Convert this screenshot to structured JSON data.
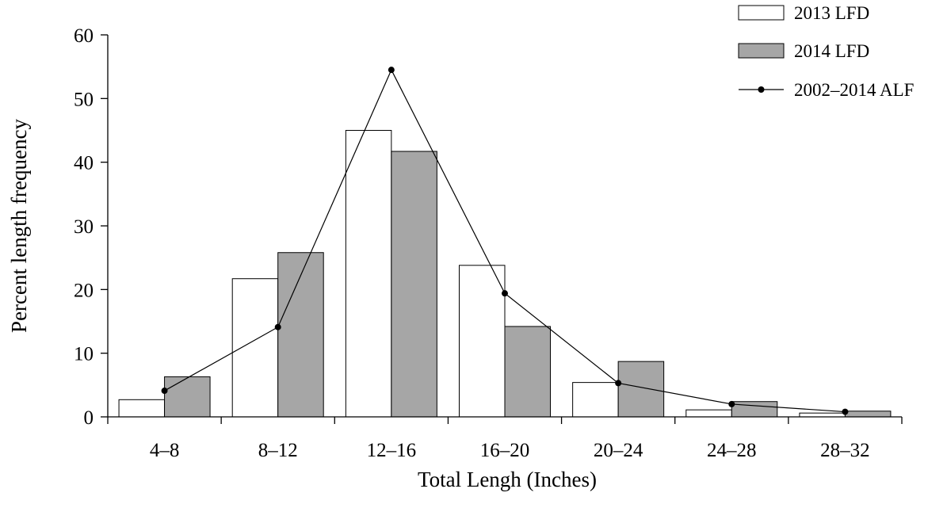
{
  "chart_data": {
    "type": "bar",
    "xlabel": "Total Lengh (Inches)",
    "ylabel": "Percent length frequency",
    "ylim": [
      0,
      60
    ],
    "yticks": [
      0,
      10,
      20,
      30,
      40,
      50,
      60
    ],
    "categories": [
      "4–8",
      "8–12",
      "12–16",
      "16–20",
      "20–24",
      "24–28",
      "28–32"
    ],
    "series": [
      {
        "name": "2013 LFD",
        "kind": "bar",
        "fill": "#ffffff",
        "values": [
          2.7,
          21.7,
          45.0,
          23.8,
          5.4,
          1.1,
          0.6
        ]
      },
      {
        "name": "2014 LFD",
        "kind": "bar",
        "fill": "#a6a6a6",
        "values": [
          6.3,
          25.8,
          41.7,
          14.2,
          8.7,
          2.4,
          0.9
        ]
      },
      {
        "name": "2002–2014 ALF",
        "kind": "line",
        "color": "#000000",
        "values": [
          4.1,
          14.1,
          54.5,
          19.4,
          5.3,
          2.0,
          0.8
        ]
      }
    ],
    "legend_position": "top-right",
    "grid": false,
    "colors": {
      "axis": "#000000",
      "bar_outline": "#000000"
    }
  }
}
